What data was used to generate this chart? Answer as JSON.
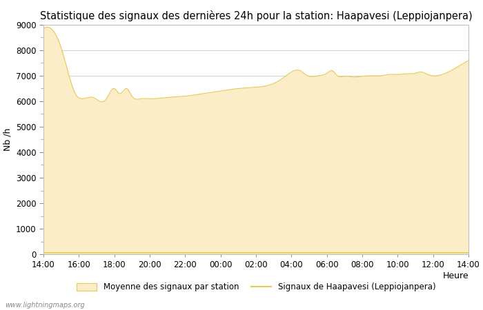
{
  "title": "Statistique des signaux des dernières 24h pour la station: Haapavesi (Leppiojanpera)",
  "xlabel": "Heure",
  "ylabel": "Nb /h",
  "ylim": [
    0,
    9000
  ],
  "yticks": [
    0,
    1000,
    2000,
    3000,
    4000,
    5000,
    6000,
    7000,
    8000,
    9000
  ],
  "xtick_labels": [
    "14:00",
    "16:00",
    "18:00",
    "20:00",
    "22:00",
    "00:00",
    "02:00",
    "04:00",
    "06:00",
    "08:00",
    "10:00",
    "12:00",
    "14:00"
  ],
  "fill_color": "#FAEDC8",
  "fill_edge_color": "#E8C850",
  "line_color": "#E8C850",
  "bg_color": "#ffffff",
  "grid_color": "#cccccc",
  "watermark": "www.lightningmaps.org",
  "legend_fill_label": "Moyenne des signaux par station",
  "legend_line_label": "Signaux de Haapavesi (Leppiojanpera)",
  "title_fontsize": 10.5,
  "label_fontsize": 9,
  "tick_fontsize": 8.5,
  "watermark_fontsize": 7
}
